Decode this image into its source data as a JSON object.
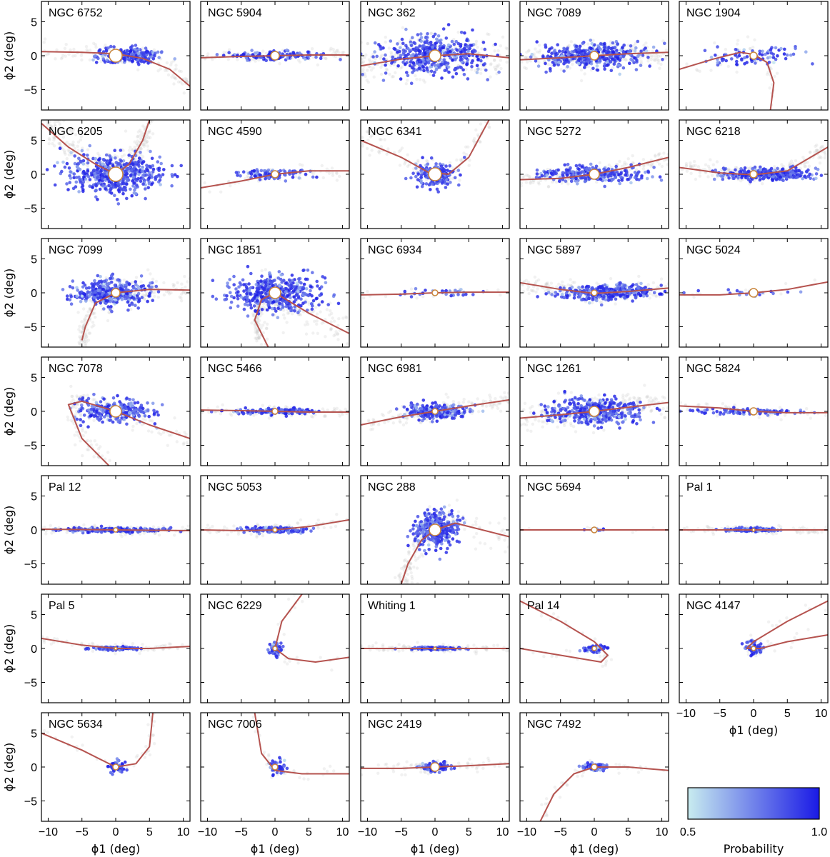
{
  "chart_data": {
    "type": "scatter",
    "description_axes": {
      "xlabel": "ϕ1 (deg)",
      "ylabel": "ϕ2 (deg)",
      "xlim": [
        -11,
        11
      ],
      "ylim": [
        -8,
        8
      ],
      "xticks": [
        -10,
        -5,
        0,
        5,
        10
      ],
      "xtick_labels": [
        "−10",
        "−5",
        "0",
        "5",
        "10"
      ],
      "yticks": [
        -5,
        0,
        5
      ],
      "ytick_labels": [
        "−5",
        "0",
        "5"
      ]
    },
    "colorbar": {
      "label": "Probability",
      "min": 0.5,
      "max": 1.0,
      "min_label": "0.5",
      "max_label": "1.0",
      "color_low": "#c8ecef",
      "color_high": "#1a1ae6"
    },
    "colors": {
      "track": "#b5534f",
      "marker_fill": "#ffffff",
      "marker_edge": "#c8843a",
      "background_points": "#c8c8c8"
    },
    "panels": [
      {
        "name": "NGC 6752",
        "spread_x": 4.5,
        "spread_y": 1.0,
        "center_x": 2,
        "n": 220,
        "stream": [
          [
            -11,
            0.6
          ],
          [
            -5,
            0.5
          ],
          [
            0,
            0.3
          ],
          [
            4,
            -0.4
          ],
          [
            8,
            -2
          ],
          [
            11,
            -4.5
          ]
        ],
        "marker": 9
      },
      {
        "name": "NGC 5904",
        "spread_x": 6,
        "spread_y": 0.5,
        "center_x": 0,
        "n": 140,
        "stream": [
          [
            -11,
            -0.3
          ],
          [
            -5,
            -0.1
          ],
          [
            0,
            0
          ],
          [
            5,
            0.1
          ],
          [
            11,
            0.1
          ]
        ],
        "marker": 6
      },
      {
        "name": "NGC 362",
        "spread_x": 7,
        "spread_y": 2.5,
        "center_x": 0,
        "n": 420,
        "stream": [
          [
            -11,
            -1.5
          ],
          [
            -5,
            -0.5
          ],
          [
            0,
            0
          ],
          [
            5,
            0.3
          ],
          [
            11,
            -0.3
          ]
        ],
        "marker": 8
      },
      {
        "name": "NGC 7089",
        "spread_x": 7,
        "spread_y": 1.6,
        "center_x": 0,
        "n": 380,
        "stream": [
          [
            -11,
            -0.6
          ],
          [
            -5,
            -0.3
          ],
          [
            0,
            0
          ],
          [
            5,
            0.3
          ],
          [
            11,
            0.5
          ]
        ],
        "marker": 6
      },
      {
        "name": "NGC 1904",
        "spread_x": 6,
        "spread_y": 1.5,
        "center_x": 0,
        "n": 80,
        "stream": [
          [
            -11,
            -2
          ],
          [
            -6,
            -0.5
          ],
          [
            -2,
            0.5
          ],
          [
            0,
            0.2
          ],
          [
            2,
            -1
          ],
          [
            3,
            -4
          ],
          [
            2.5,
            -8
          ]
        ],
        "marker": 5
      },
      {
        "name": "NGC 6205",
        "spread_x": 6,
        "spread_y": 2.5,
        "center_x": 0,
        "n": 520,
        "stream": [
          [
            -11,
            7.5
          ],
          [
            -7,
            4
          ],
          [
            -3,
            1.5
          ],
          [
            0,
            0
          ],
          [
            2,
            1.5
          ],
          [
            4,
            5
          ],
          [
            5,
            8
          ]
        ],
        "marker": 10
      },
      {
        "name": "NGC 4590",
        "spread_x": 6,
        "spread_y": 0.6,
        "center_x": 0,
        "n": 90,
        "stream": [
          [
            -11,
            -2
          ],
          [
            -5,
            -1
          ],
          [
            0,
            0
          ],
          [
            5,
            0.5
          ],
          [
            11,
            0.5
          ]
        ],
        "marker": 5
      },
      {
        "name": "NGC 6341",
        "spread_x": 2.5,
        "spread_y": 1.5,
        "center_x": 0,
        "n": 180,
        "stream": [
          [
            -11,
            5
          ],
          [
            -5,
            2.5
          ],
          [
            -1,
            0.3
          ],
          [
            2,
            0
          ],
          [
            5,
            2.5
          ],
          [
            8,
            8
          ]
        ],
        "marker": 9
      },
      {
        "name": "NGC 5272",
        "spread_x": 7,
        "spread_y": 1.0,
        "center_x": 0,
        "n": 260,
        "stream": [
          [
            -11,
            -0.8
          ],
          [
            -5,
            -0.6
          ],
          [
            0,
            0
          ],
          [
            5,
            1
          ],
          [
            11,
            2.5
          ]
        ],
        "marker": 7
      },
      {
        "name": "NGC 6218",
        "spread_x": 6,
        "spread_y": 0.8,
        "center_x": 2,
        "n": 320,
        "stream": [
          [
            -11,
            1
          ],
          [
            -5,
            0.2
          ],
          [
            0,
            -0.1
          ],
          [
            5,
            0.5
          ],
          [
            11,
            4
          ]
        ],
        "marker": 5
      },
      {
        "name": "NGC 7099",
        "spread_x": 5,
        "spread_y": 1.8,
        "center_x": -1,
        "n": 360,
        "stream": [
          [
            -5,
            -7
          ],
          [
            -4.5,
            -5
          ],
          [
            -3,
            -1.5
          ],
          [
            0,
            0
          ],
          [
            5,
            0.5
          ],
          [
            11,
            0.4
          ]
        ],
        "marker": 6
      },
      {
        "name": "NGC 1851",
        "spread_x": 6,
        "spread_y": 2.5,
        "center_x": 0,
        "n": 420,
        "stream": [
          [
            -1,
            -8
          ],
          [
            -3,
            -4
          ],
          [
            -2,
            -1
          ],
          [
            0,
            0
          ],
          [
            5,
            -3
          ],
          [
            11,
            -6
          ]
        ],
        "marker": 8
      },
      {
        "name": "NGC 6934",
        "spread_x": 7,
        "spread_y": 0.4,
        "center_x": 0,
        "n": 30,
        "stream": [
          [
            -11,
            -0.3
          ],
          [
            -5,
            -0.2
          ],
          [
            0,
            0
          ],
          [
            5,
            0.1
          ],
          [
            11,
            0.1
          ]
        ],
        "marker": 4
      },
      {
        "name": "NGC 5897",
        "spread_x": 7,
        "spread_y": 1.0,
        "center_x": 2,
        "n": 320,
        "stream": [
          [
            -11,
            1.5
          ],
          [
            -5,
            0.5
          ],
          [
            0,
            -0.1
          ],
          [
            5,
            0.2
          ],
          [
            11,
            0.7
          ]
        ],
        "marker": 4
      },
      {
        "name": "NGC 5024",
        "spread_x": 7,
        "spread_y": 0.4,
        "center_x": 0,
        "n": 20,
        "stream": [
          [
            -11,
            -0.3
          ],
          [
            -5,
            -0.3
          ],
          [
            0,
            0
          ],
          [
            5,
            0.5
          ],
          [
            11,
            1.6
          ]
        ],
        "marker": 6
      },
      {
        "name": "NGC 7078",
        "spread_x": 5,
        "spread_y": 1.5,
        "center_x": 0,
        "n": 260,
        "stream": [
          [
            -1,
            -8
          ],
          [
            -5,
            -4
          ],
          [
            -7,
            1
          ],
          [
            -5,
            1.5
          ],
          [
            0,
            0
          ],
          [
            5,
            -2
          ],
          [
            11,
            -4
          ]
        ],
        "marker": 8
      },
      {
        "name": "NGC 5466",
        "spread_x": 6,
        "spread_y": 0.4,
        "center_x": 0,
        "n": 140,
        "stream": [
          [
            -11,
            0.2
          ],
          [
            -5,
            0.1
          ],
          [
            0,
            0
          ],
          [
            5,
            -0.1
          ],
          [
            11,
            -0.1
          ]
        ],
        "marker": 4
      },
      {
        "name": "NGC 6981",
        "spread_x": 4,
        "spread_y": 1.0,
        "center_x": 0,
        "n": 260,
        "stream": [
          [
            -11,
            -2
          ],
          [
            -5,
            -0.8
          ],
          [
            0,
            0
          ],
          [
            5,
            0.8
          ],
          [
            11,
            1.7
          ]
        ],
        "marker": 4
      },
      {
        "name": "NGC 1261",
        "spread_x": 6,
        "spread_y": 1.8,
        "center_x": 0,
        "n": 380,
        "stream": [
          [
            -11,
            -1
          ],
          [
            -5,
            -0.5
          ],
          [
            0,
            0
          ],
          [
            5,
            0.6
          ],
          [
            11,
            1.3
          ]
        ],
        "marker": 7
      },
      {
        "name": "NGC 5824",
        "spread_x": 7,
        "spread_y": 0.4,
        "center_x": 0,
        "n": 90,
        "stream": [
          [
            -11,
            0.8
          ],
          [
            -5,
            0.5
          ],
          [
            0,
            0
          ],
          [
            5,
            -0.2
          ],
          [
            11,
            -0.2
          ]
        ],
        "marker": 5
      },
      {
        "name": "Pal 12",
        "spread_x": 7,
        "spread_y": 0.3,
        "center_x": 0,
        "n": 200,
        "stream": [
          [
            -11,
            0.1
          ],
          [
            -5,
            0.05
          ],
          [
            0,
            0
          ],
          [
            5,
            -0.05
          ],
          [
            11,
            -0.1
          ]
        ],
        "marker": 3
      },
      {
        "name": "NGC 5053",
        "spread_x": 4,
        "spread_y": 0.4,
        "center_x": 0,
        "n": 140,
        "stream": [
          [
            -11,
            0
          ],
          [
            -5,
            -0.1
          ],
          [
            0,
            0
          ],
          [
            5,
            0.5
          ],
          [
            11,
            1.5
          ]
        ],
        "marker": 3
      },
      {
        "name": "NGC 288",
        "spread_x": 3,
        "spread_y": 2.5,
        "center_x": 0,
        "n": 300,
        "stream": [
          [
            -5,
            -8
          ],
          [
            -4,
            -5
          ],
          [
            -2,
            -1.5
          ],
          [
            0,
            0
          ],
          [
            3,
            1
          ],
          [
            11,
            -1
          ]
        ],
        "marker": 8
      },
      {
        "name": "NGC 5694",
        "spread_x": 1.2,
        "spread_y": 0.3,
        "center_x": 0,
        "n": 14,
        "stream": [
          [
            -11,
            0
          ],
          [
            -5,
            0
          ],
          [
            0,
            0
          ],
          [
            5,
            0
          ],
          [
            11,
            0
          ]
        ],
        "marker": 4
      },
      {
        "name": "Pal 1",
        "spread_x": 3,
        "spread_y": 0.25,
        "center_x": 0,
        "n": 160,
        "stream": [
          [
            -11,
            0
          ],
          [
            -5,
            0
          ],
          [
            0,
            0
          ],
          [
            5,
            0
          ],
          [
            11,
            0
          ]
        ],
        "marker": 2
      },
      {
        "name": "Pal 5",
        "spread_x": 3,
        "spread_y": 0.2,
        "center_x": 0,
        "n": 120,
        "stream": [
          [
            -11,
            1.5
          ],
          [
            -5,
            0.5
          ],
          [
            0,
            0
          ],
          [
            5,
            0
          ],
          [
            11,
            0.3
          ]
        ],
        "marker": 2
      },
      {
        "name": "NGC 6229",
        "spread_x": 0.8,
        "spread_y": 1.0,
        "center_x": 0,
        "n": 40,
        "stream": [
          [
            4,
            8
          ],
          [
            1,
            4
          ],
          [
            0,
            0
          ],
          [
            2,
            -1.5
          ],
          [
            6,
            -2
          ],
          [
            11,
            -1.3
          ]
        ],
        "marker": 3
      },
      {
        "name": "Whiting 1",
        "spread_x": 3,
        "spread_y": 0.2,
        "center_x": 0,
        "n": 160,
        "stream": [
          [
            -11,
            0
          ],
          [
            -5,
            0
          ],
          [
            0,
            0
          ],
          [
            5,
            0
          ],
          [
            11,
            0
          ]
        ],
        "marker": 2
      },
      {
        "name": "Pal 14",
        "spread_x": 1.5,
        "spread_y": 0.5,
        "center_x": 0,
        "n": 60,
        "stream": [
          [
            -11,
            7
          ],
          [
            -5,
            4
          ],
          [
            0,
            1
          ],
          [
            2,
            -1
          ],
          [
            1,
            -2
          ],
          [
            -5,
            -1
          ],
          [
            -11,
            0
          ]
        ],
        "marker": 3
      },
      {
        "name": "NGC 4147",
        "spread_x": 1.2,
        "spread_y": 1.0,
        "center_x": 0,
        "n": 60,
        "stream": [
          [
            11,
            7
          ],
          [
            5,
            4
          ],
          [
            0,
            1
          ],
          [
            -1,
            0
          ],
          [
            1,
            0
          ],
          [
            5,
            1
          ],
          [
            11,
            2
          ]
        ],
        "marker": 3
      },
      {
        "name": "NGC 5634",
        "spread_x": 1.2,
        "spread_y": 0.8,
        "center_x": 0,
        "n": 60,
        "stream": [
          [
            -11,
            5
          ],
          [
            -5,
            2.5
          ],
          [
            0,
            0
          ],
          [
            3,
            0.5
          ],
          [
            5,
            3
          ],
          [
            5.5,
            8
          ]
        ],
        "marker": 4
      },
      {
        "name": "NGC 7006",
        "spread_x": 1.2,
        "spread_y": 1.0,
        "center_x": 0,
        "n": 50,
        "stream": [
          [
            -3,
            8
          ],
          [
            -2,
            2
          ],
          [
            0,
            -0.5
          ],
          [
            4,
            -1
          ],
          [
            11,
            -1
          ]
        ],
        "marker": 4
      },
      {
        "name": "NGC 2419",
        "spread_x": 2,
        "spread_y": 0.6,
        "center_x": 0,
        "n": 120,
        "stream": [
          [
            -11,
            -0.2
          ],
          [
            -5,
            -0.2
          ],
          [
            0,
            0
          ],
          [
            5,
            0.2
          ],
          [
            11,
            0.5
          ]
        ],
        "marker": 6
      },
      {
        "name": "NGC 7492",
        "spread_x": 1.5,
        "spread_y": 0.5,
        "center_x": 0,
        "n": 80,
        "stream": [
          [
            -8,
            -8
          ],
          [
            -6,
            -4
          ],
          [
            -3,
            -1
          ],
          [
            0,
            0
          ],
          [
            5,
            0
          ],
          [
            11,
            -0.5
          ]
        ],
        "marker": 4
      }
    ]
  }
}
